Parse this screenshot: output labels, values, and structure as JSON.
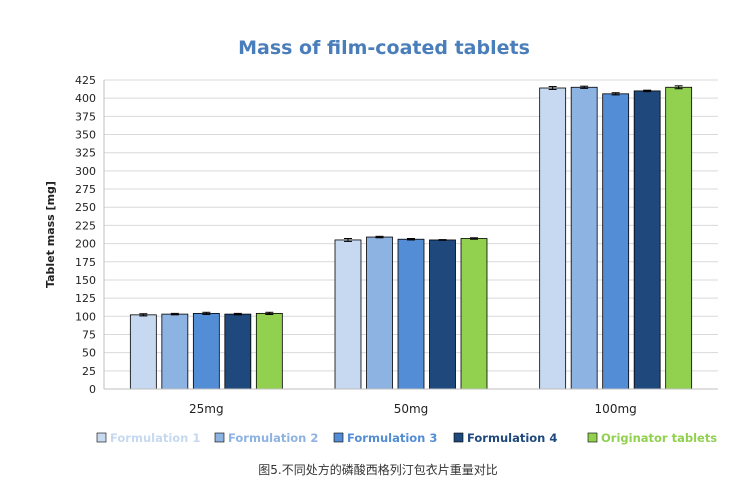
{
  "chart_data": {
    "type": "bar",
    "title": "Mass of film-coated tablets",
    "xlabel": "",
    "ylabel": "Tablet mass [mg]",
    "ylim": [
      0,
      425
    ],
    "yticks": [
      0,
      25,
      50,
      75,
      100,
      125,
      150,
      175,
      200,
      225,
      250,
      275,
      300,
      325,
      350,
      375,
      400,
      425
    ],
    "grid": true,
    "legend_position": "bottom",
    "categories": [
      "25mg",
      "50mg",
      "100mg"
    ],
    "series": [
      {
        "name": "Formulation 1",
        "color": "#c6d9f0",
        "label_color": "#c6d9f0",
        "values": [
          102,
          205,
          414
        ],
        "errors": [
          1.5,
          2,
          2
        ]
      },
      {
        "name": "Formulation 2",
        "color": "#8db3e2",
        "label_color": "#8db3e2",
        "values": [
          103,
          209,
          415
        ],
        "errors": [
          1,
          1,
          1.5
        ]
      },
      {
        "name": "Formulation 3",
        "color": "#538dd5",
        "label_color": "#538dd5",
        "values": [
          104,
          206,
          406
        ],
        "errors": [
          1.5,
          1,
          1.5
        ]
      },
      {
        "name": "Formulation 4",
        "color": "#1f497d",
        "label_color": "#1f497d",
        "values": [
          103,
          205,
          410
        ],
        "errors": [
          1,
          0.5,
          1
        ]
      },
      {
        "name": "Originator tablets",
        "color": "#92d050",
        "label_color": "#92d050",
        "values": [
          104,
          207,
          415
        ],
        "errors": [
          1.5,
          1,
          2
        ]
      }
    ]
  },
  "caption": "图5.不同处方的磷酸西格列汀包衣片重量对比"
}
